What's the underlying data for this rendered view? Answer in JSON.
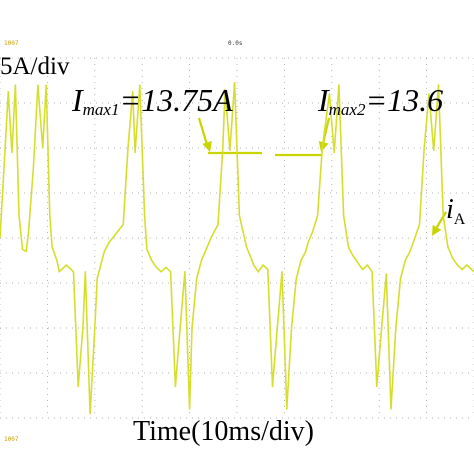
{
  "chart_data": {
    "type": "line",
    "title": "",
    "ylabel": "5A/div",
    "xlabel": "Time(10ms/div)",
    "ylim": [
      -8,
      8
    ],
    "xlim": [
      0,
      200
    ],
    "grid": true,
    "series": [
      {
        "name": "iA",
        "color": "#d6de2c",
        "x": [
          0,
          3.5,
          5,
          6.5,
          8,
          9.5,
          11,
          12,
          14,
          16,
          18,
          19.5,
          21,
          22,
          24,
          25,
          28,
          31,
          33,
          35,
          36,
          38,
          40,
          41,
          43,
          44,
          46,
          49,
          52,
          54,
          56,
          57,
          59,
          61,
          62,
          64,
          66,
          68,
          70,
          72,
          74,
          76,
          78,
          80,
          81,
          83,
          85,
          87,
          89,
          92,
          94,
          95,
          97,
          99,
          101,
          104,
          106,
          107,
          109,
          111,
          113,
          115,
          117,
          119,
          121,
          123,
          125,
          127,
          129,
          130,
          132,
          134,
          136,
          139,
          141,
          143,
          145,
          147,
          149,
          151,
          153,
          155,
          157,
          159,
          161,
          163,
          165,
          167,
          169,
          171,
          173,
          175,
          177,
          179,
          181,
          183,
          185,
          187,
          189,
          191,
          193,
          195,
          197,
          199,
          200
        ],
        "values": [
          0,
          6.5,
          3.8,
          6.8,
          1,
          -0.5,
          -0.6,
          0.2,
          3,
          6.8,
          4,
          6.8,
          1,
          -0.4,
          -1,
          -1.5,
          -1.2,
          -1.5,
          -6.6,
          -4,
          -1.5,
          -7.8,
          -4,
          -1.8,
          -1,
          -0.6,
          -0.2,
          0.2,
          0.6,
          4,
          6.5,
          3.8,
          6.8,
          1,
          -0.5,
          -1,
          -1.3,
          -1.5,
          -1.3,
          -1.5,
          -6.6,
          -4,
          -1.5,
          -7.6,
          -4,
          -1.8,
          -1,
          -0.5,
          0,
          0.6,
          4,
          6.6,
          3.9,
          6.9,
          1,
          -0.4,
          -0.9,
          -1.2,
          -1.5,
          -1.2,
          -1.4,
          -6.6,
          -4,
          -1.5,
          -7.6,
          -4,
          -1.8,
          -1,
          -0.6,
          -0.2,
          0.3,
          1,
          4,
          6.4,
          3.8,
          6.8,
          1,
          -0.4,
          -0.8,
          -1.1,
          -1.4,
          -1.2,
          -1.5,
          -6.6,
          -4,
          -1.6,
          -7.6,
          -4,
          -1.8,
          -1,
          -0.6,
          0,
          0.6,
          4,
          6.4,
          3.9,
          6.8,
          1,
          -0.4,
          -0.9,
          -1.2,
          -1.4,
          -1.2,
          -1.4,
          -1.5
        ]
      }
    ],
    "annotations": [
      {
        "label": "Imax1=13.75A",
        "main": "I",
        "sub": "max1",
        "rest": "=13.75A"
      },
      {
        "label": "Imax2=13.6",
        "main": "I",
        "sub": "max2",
        "rest": "=13.6"
      }
    ],
    "trace_label": {
      "main": "i",
      "sub": "A"
    }
  },
  "osd": {
    "top_left": "1007",
    "top_center": "0.0s",
    "bottom_left": "1007"
  }
}
